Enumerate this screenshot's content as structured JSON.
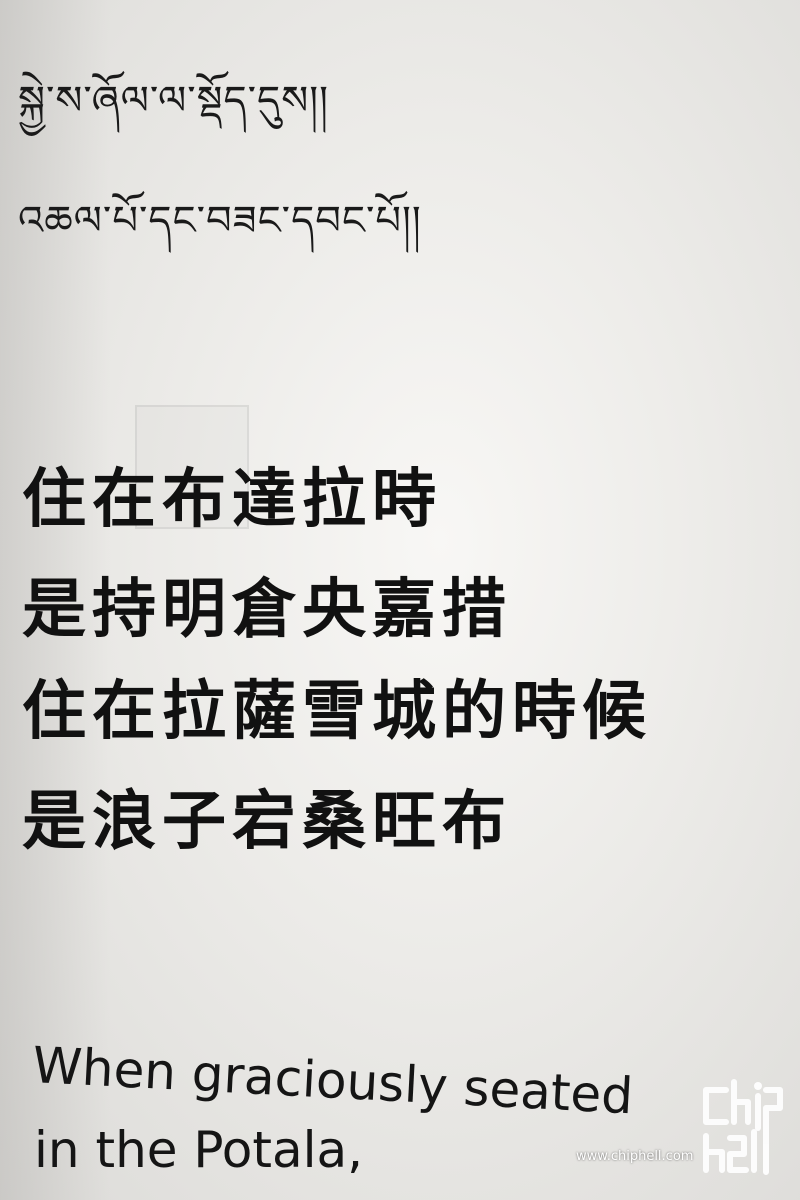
{
  "tibetan": {
    "line1": "སྐྱེ་ས་ཞོལ་ལ་སྡོད་དུས།།",
    "line2": "འཆལ་པོ་དང་བཟང་དབང་པོ།།"
  },
  "chinese": {
    "line1": "住在布達拉時",
    "line2": "是持明倉央嘉措",
    "line3": "住在拉薩雪城的時候",
    "line4": "是浪子宕桑旺布"
  },
  "english": {
    "line1": "When graciously seated",
    "line2": "in the Potala,"
  },
  "watermark": {
    "url": "www.chiphell.com",
    "logo_icon": "chiphell-logo-icon"
  },
  "colors": {
    "ink": "#141414",
    "paper": "#f3f2ef"
  }
}
